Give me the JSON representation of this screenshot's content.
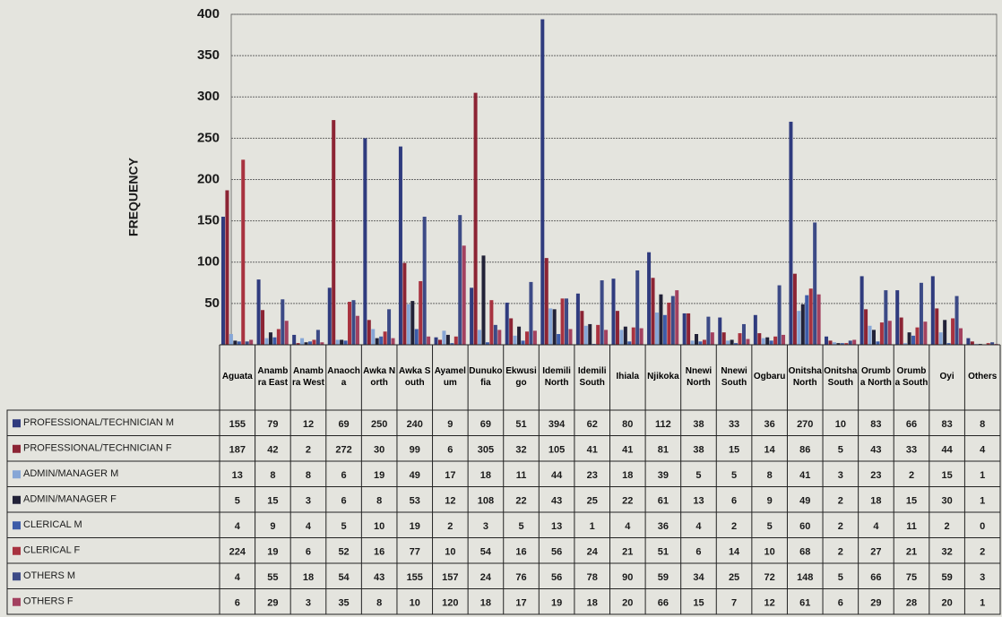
{
  "chart_data": {
    "type": "bar",
    "ylabel": "FREQUENCY",
    "categories": [
      "Aguata",
      "Anambra East",
      "Anambra West",
      "Anaocha",
      "Awka North",
      "Awka South",
      "Ayamelum",
      "Dunukofia",
      "Ekwusigo",
      "Idemili North",
      "Idemili South",
      "Ihiala",
      "Njikoka",
      "Nnewi North",
      "Nnewi South",
      "Ogbaru",
      "Onitsha North",
      "Onitsha South",
      "Orumba North",
      "Orumba South",
      "Oyi",
      "Others"
    ],
    "series": [
      {
        "name": "PROFESSIONAL/TECHNICIAN M",
        "color": "#2f3b7e",
        "values": [
          155,
          79,
          12,
          69,
          250,
          240,
          9,
          69,
          51,
          394,
          62,
          80,
          112,
          38,
          33,
          36,
          270,
          10,
          83,
          66,
          83,
          8
        ]
      },
      {
        "name": "PROFESSIONAL/TECHNICIAN F",
        "color": "#8c2434",
        "values": [
          187,
          42,
          2,
          272,
          30,
          99,
          6,
          305,
          32,
          105,
          41,
          41,
          81,
          38,
          15,
          14,
          86,
          5,
          43,
          33,
          44,
          4
        ]
      },
      {
        "name": "ADMIN/MANAGER M",
        "color": "#86a6d6",
        "values": [
          13,
          8,
          8,
          6,
          19,
          49,
          17,
          18,
          11,
          44,
          23,
          18,
          39,
          5,
          5,
          8,
          41,
          3,
          23,
          2,
          15,
          1
        ]
      },
      {
        "name": "ADMIN/MANAGER F",
        "color": "#222238",
        "values": [
          5,
          15,
          3,
          6,
          8,
          53,
          12,
          108,
          22,
          43,
          25,
          22,
          61,
          13,
          6,
          9,
          49,
          2,
          18,
          15,
          30,
          1
        ]
      },
      {
        "name": "CLERICAL M",
        "color": "#3d5ca8",
        "values": [
          4,
          9,
          4,
          5,
          10,
          19,
          2,
          3,
          5,
          13,
          1,
          4,
          36,
          4,
          2,
          5,
          60,
          2,
          4,
          11,
          2,
          0
        ]
      },
      {
        "name": "CLERICAL F",
        "color": "#a8323f",
        "values": [
          224,
          19,
          6,
          52,
          16,
          77,
          10,
          54,
          16,
          56,
          24,
          21,
          51,
          6,
          14,
          10,
          68,
          2,
          27,
          21,
          32,
          2
        ]
      },
      {
        "name": "OTHERS M",
        "color": "#3c4a86",
        "values": [
          4,
          55,
          18,
          54,
          43,
          155,
          157,
          24,
          76,
          56,
          78,
          90,
          59,
          34,
          25,
          72,
          148,
          5,
          66,
          75,
          59,
          3
        ]
      },
      {
        "name": "OTHERS F",
        "color": "#a3415f",
        "values": [
          6,
          29,
          3,
          35,
          8,
          10,
          120,
          18,
          17,
          19,
          18,
          20,
          66,
          15,
          7,
          12,
          61,
          6,
          29,
          28,
          20,
          1
        ]
      }
    ],
    "ylim": [
      0,
      400
    ],
    "yticks": [
      50,
      100,
      150,
      200,
      250,
      300,
      350,
      400
    ],
    "grid": true
  }
}
